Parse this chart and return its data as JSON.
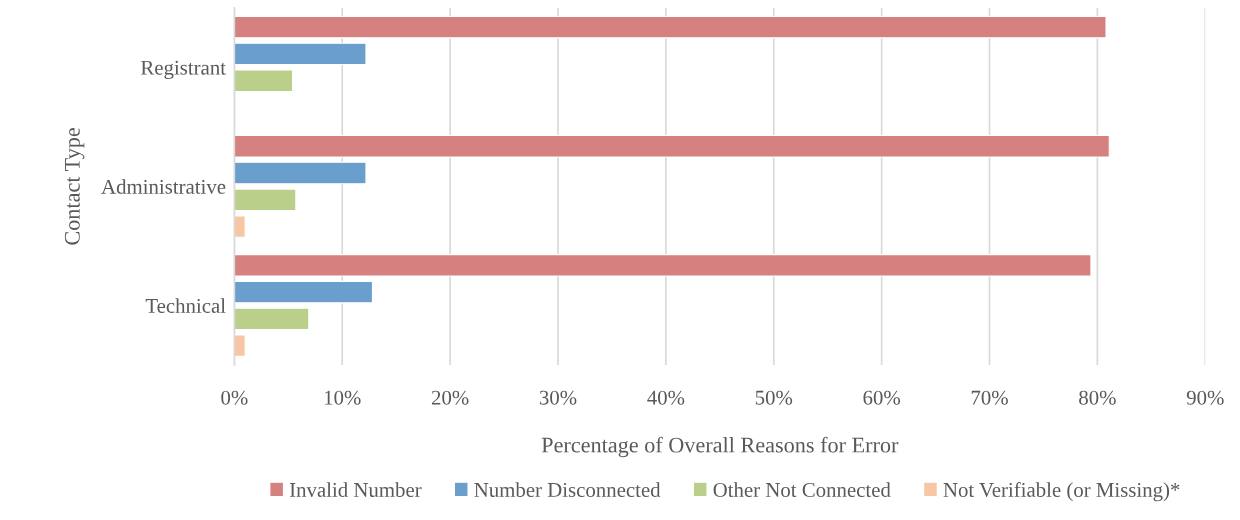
{
  "chart_data": {
    "type": "bar",
    "orientation": "horizontal",
    "xlabel": "Percentage of Overall Reasons for Error",
    "ylabel": "Contact Type",
    "categories": [
      "Registrant",
      "Administrative",
      "Technical"
    ],
    "series": [
      {
        "name": "Invalid Number",
        "color": "#d4817f",
        "values": [
          80.8,
          81.1,
          79.4
        ]
      },
      {
        "name": "Number Disconnected",
        "color": "#6a9fcd",
        "values": [
          12.2,
          12.2,
          12.8
        ]
      },
      {
        "name": "Other Not Connected",
        "color": "#bad08a",
        "values": [
          5.4,
          5.7,
          6.9
        ]
      },
      {
        "name": "Not Verifiable (or Missing)*",
        "color": "#f7c7a5",
        "values": [
          null,
          1.0,
          1.0
        ]
      }
    ],
    "xlim": [
      0,
      90
    ],
    "xticks": [
      {
        "value": 0,
        "label": "0%"
      },
      {
        "value": 10,
        "label": "10%"
      },
      {
        "value": 20,
        "label": "20%"
      },
      {
        "value": 30,
        "label": "30%"
      },
      {
        "value": 40,
        "label": "40%"
      },
      {
        "value": 50,
        "label": "50%"
      },
      {
        "value": 60,
        "label": "60%"
      },
      {
        "value": 70,
        "label": "70%"
      },
      {
        "value": 80,
        "label": "80%"
      },
      {
        "value": 90,
        "label": "90%"
      }
    ],
    "grid": "x",
    "legend": "bottom"
  }
}
